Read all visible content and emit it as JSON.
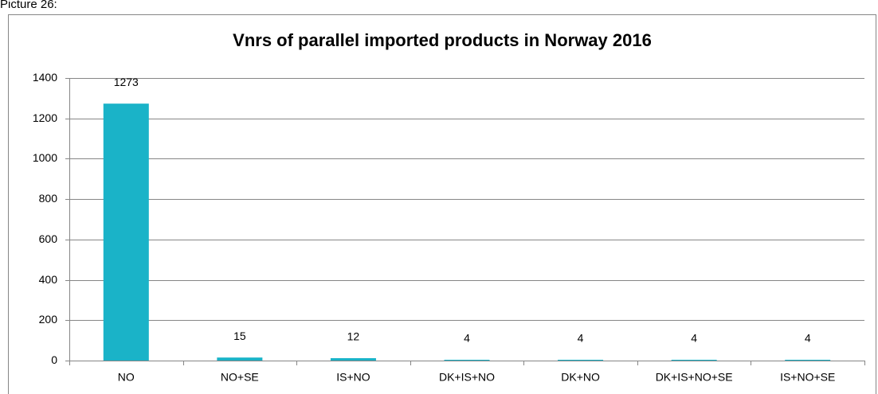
{
  "caption": "Picture 26:",
  "chart_data": {
    "type": "bar",
    "title": "Vnrs of parallel imported products in Norway 2016",
    "categories": [
      "NO",
      "NO+SE",
      "IS+NO",
      "DK+IS+NO",
      "DK+NO",
      "DK+IS+NO+SE",
      "IS+NO+SE"
    ],
    "values": [
      1273,
      15,
      12,
      4,
      4,
      4,
      4
    ],
    "color": "#1ab3c8",
    "ylim": [
      0,
      1400
    ],
    "yticks": [
      0,
      200,
      400,
      600,
      800,
      1000,
      1200,
      1400
    ],
    "grid": true
  }
}
